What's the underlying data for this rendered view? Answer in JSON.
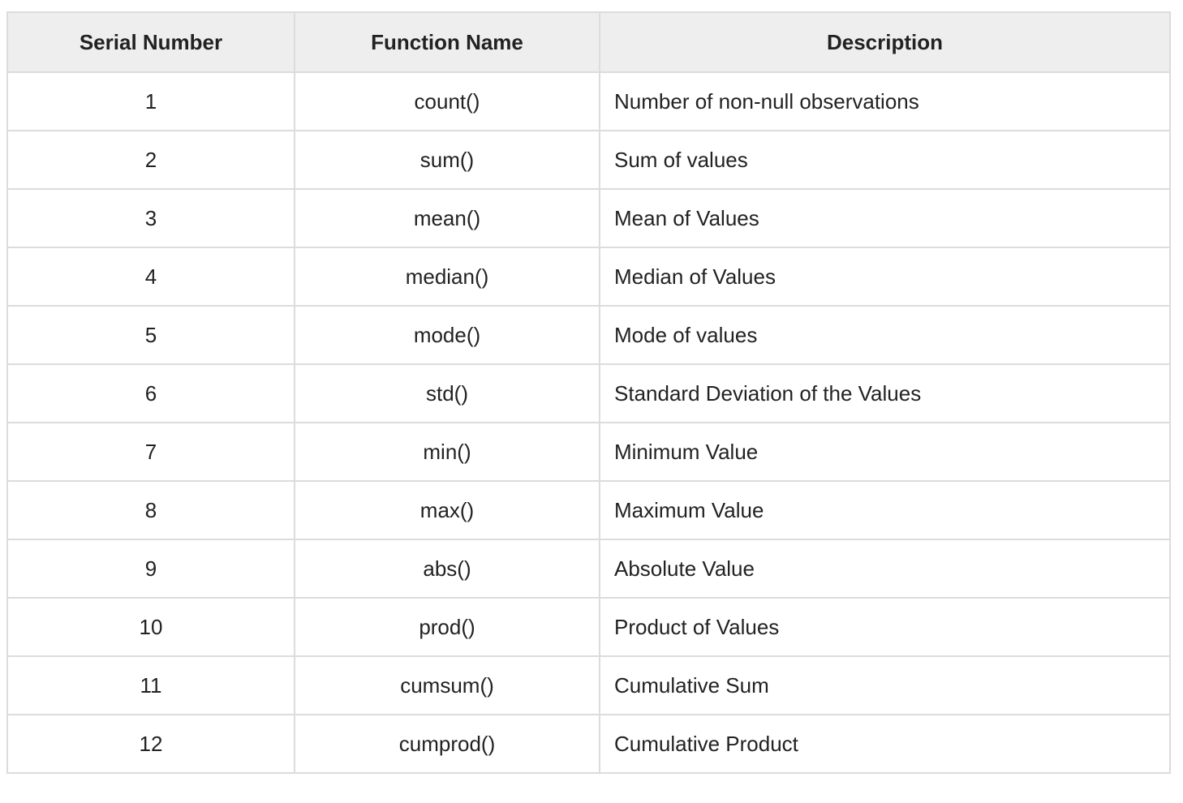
{
  "table": {
    "headers": [
      "Serial Number",
      "Function Name",
      "Description"
    ],
    "rows": [
      [
        "1",
        "count()",
        "Number of non-null observations"
      ],
      [
        "2",
        "sum()",
        "Sum of values"
      ],
      [
        "3",
        "mean()",
        "Mean of Values"
      ],
      [
        "4",
        "median()",
        "Median of Values"
      ],
      [
        "5",
        "mode()",
        "Mode of values"
      ],
      [
        "6",
        "std()",
        "Standard Deviation of the Values"
      ],
      [
        "7",
        "min()",
        "Minimum Value"
      ],
      [
        "8",
        "max()",
        "Maximum Value"
      ],
      [
        "9",
        "abs()",
        "Absolute Value"
      ],
      [
        "10",
        "prod()",
        "Product of Values"
      ],
      [
        "11",
        "cumsum()",
        "Cumulative Sum"
      ],
      [
        "12",
        "cumprod()",
        "Cumulative Product"
      ]
    ]
  }
}
